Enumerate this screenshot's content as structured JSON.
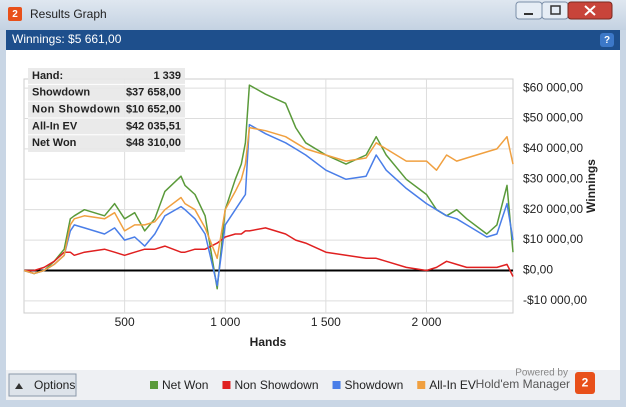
{
  "window": {
    "title": "Results Graph",
    "header": "Winnings: $5 661,00",
    "options_button": "Options",
    "powered_by": "Powered by",
    "brand": "Hold'em Manager"
  },
  "stats": [
    [
      "Hand:",
      "1 339"
    ],
    [
      "Showdown",
      "$37 658,00"
    ],
    [
      "Non Showdown",
      "$10 652,00"
    ],
    [
      "All-In EV",
      "$42 035,51"
    ],
    [
      "Net Won",
      "$48 310,00"
    ]
  ],
  "chart_data": {
    "type": "line",
    "xlabel": "Hands",
    "ylabel": "Winnings",
    "grid": true,
    "xlim": [
      0,
      2430
    ],
    "ylim": [
      -14000,
      63000
    ],
    "xticks": [
      500,
      {
        "value": 1000,
        "label": "1 000"
      },
      {
        "value": 1500,
        "label": "1 500"
      },
      {
        "value": 2000,
        "label": "2 000"
      }
    ],
    "yticks": [
      {
        "value": -10000,
        "label": "-$10 000,00"
      },
      {
        "value": 0,
        "label": "$0,00"
      },
      {
        "value": 10000,
        "label": "$10 000,00"
      },
      {
        "value": 20000,
        "label": "$20 000,00"
      },
      {
        "value": 30000,
        "label": "$30 000,00"
      },
      {
        "value": 40000,
        "label": "$40 000,00"
      },
      {
        "value": 50000,
        "label": "$50 000,00"
      },
      {
        "value": 60000,
        "label": "$60 000,00"
      }
    ],
    "x": [
      0,
      50,
      100,
      150,
      200,
      230,
      250,
      300,
      400,
      450,
      500,
      550,
      600,
      650,
      700,
      780,
      800,
      850,
      900,
      960,
      1000,
      1050,
      1080,
      1100,
      1120,
      1200,
      1300,
      1350,
      1400,
      1500,
      1600,
      1700,
      1750,
      1800,
      1900,
      2000,
      2050,
      2100,
      2150,
      2200,
      2300,
      2350,
      2400,
      2430
    ],
    "series": [
      {
        "name": "Net Won",
        "color": "#5a9a3a",
        "values": [
          0,
          -1000,
          0,
          3000,
          7000,
          17000,
          18000,
          20000,
          18000,
          22000,
          17000,
          19000,
          13000,
          17000,
          26000,
          31000,
          28000,
          25000,
          18000,
          -6000,
          20000,
          30000,
          35000,
          42000,
          61000,
          58000,
          55000,
          47000,
          42000,
          38000,
          35000,
          38000,
          44000,
          38000,
          30000,
          25000,
          20000,
          18000,
          20000,
          17000,
          12000,
          15000,
          28000,
          6000
        ]
      },
      {
        "name": "Non Showdown",
        "color": "#e02020",
        "values": [
          0,
          0,
          1000,
          3000,
          6000,
          6000,
          5000,
          6000,
          7000,
          6000,
          5000,
          6000,
          7000,
          7000,
          8000,
          6000,
          6000,
          7000,
          7000,
          9000,
          11000,
          12000,
          12000,
          13000,
          13000,
          14000,
          12000,
          10000,
          9000,
          6000,
          5000,
          4000,
          4000,
          3000,
          1000,
          0,
          1000,
          3000,
          2000,
          1000,
          1000,
          1000,
          2000,
          -2000
        ]
      },
      {
        "name": "Showdown",
        "color": "#4a7ee8",
        "values": [
          0,
          -1000,
          0,
          2000,
          5000,
          13000,
          15000,
          14000,
          12000,
          14000,
          10000,
          11000,
          8000,
          12000,
          18000,
          21000,
          20000,
          17000,
          12000,
          -5000,
          15000,
          20000,
          23000,
          25000,
          48000,
          45000,
          42000,
          40000,
          38000,
          33000,
          30000,
          31000,
          38000,
          33000,
          27000,
          22000,
          20000,
          18000,
          17000,
          15000,
          11000,
          12000,
          22000,
          10000
        ]
      },
      {
        "name": "All-In EV",
        "color": "#f0a040",
        "values": [
          0,
          -1000,
          0,
          2000,
          5000,
          15000,
          17000,
          18000,
          17000,
          19000,
          13000,
          15000,
          15000,
          16000,
          20000,
          24000,
          22000,
          20000,
          14000,
          4000,
          20000,
          26000,
          30000,
          35000,
          47000,
          46000,
          44000,
          42000,
          40000,
          38000,
          36000,
          37000,
          42000,
          40000,
          36000,
          36000,
          33000,
          38000,
          36000,
          37000,
          39000,
          40000,
          44000,
          35000
        ]
      }
    ]
  }
}
